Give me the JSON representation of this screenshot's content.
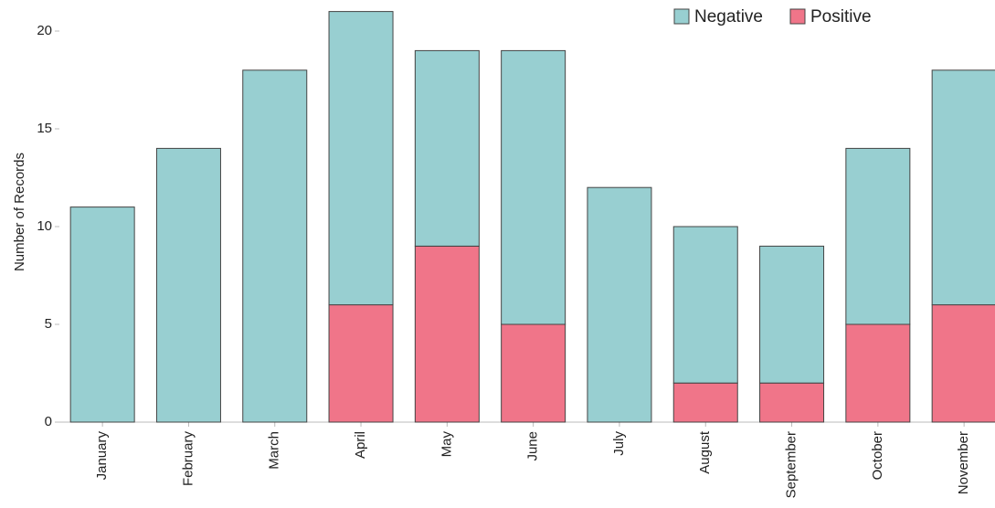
{
  "chart_data": {
    "type": "stacked_bar",
    "y_label": "Number of Records",
    "categories": [
      "January",
      "February",
      "March",
      "April",
      "May",
      "June",
      "July",
      "August",
      "September",
      "October",
      "November"
    ],
    "series": [
      {
        "name": "Negative",
        "color": "#98cfd1",
        "values": [
          11,
          14,
          18,
          15,
          10,
          14,
          12,
          8,
          7,
          9,
          12
        ]
      },
      {
        "name": "Positive",
        "color": "#f07589",
        "values": [
          0,
          0,
          0,
          6,
          9,
          5,
          0,
          2,
          2,
          5,
          6
        ]
      }
    ],
    "ylim": [
      0,
      21.5
    ],
    "yticks": [
      0,
      5,
      10,
      15,
      20
    ],
    "grid": false,
    "legend": "top-right"
  }
}
